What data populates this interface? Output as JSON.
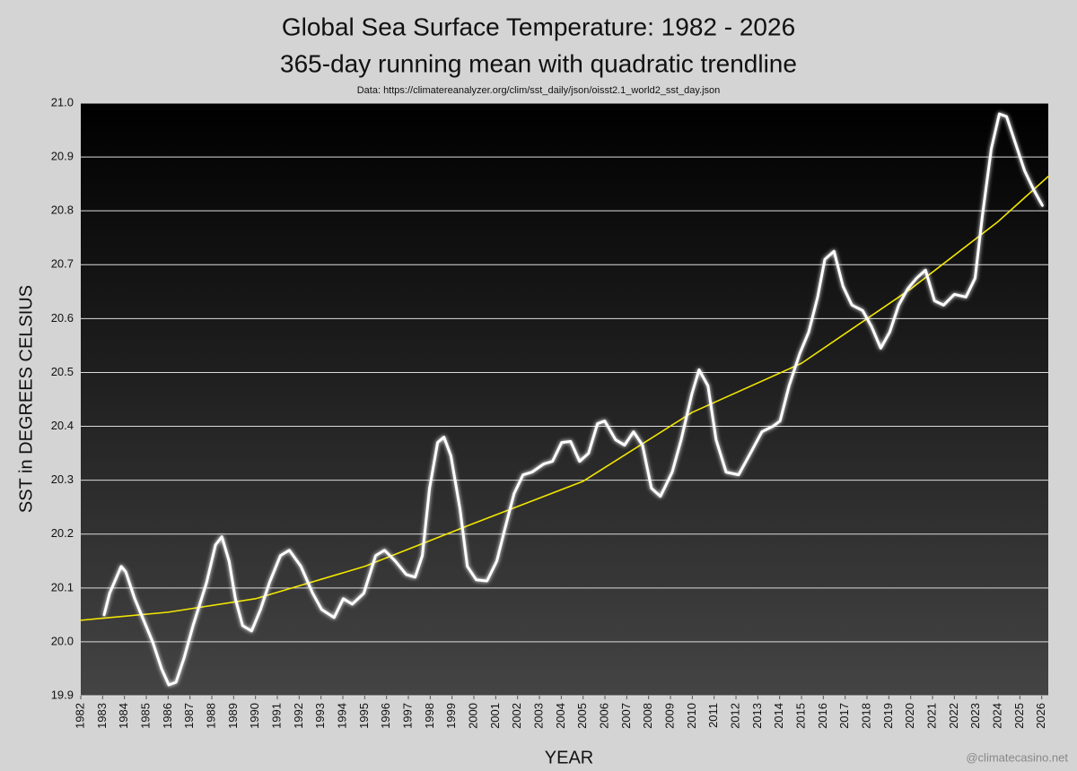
{
  "chart_data": {
    "type": "line",
    "title": "Global Sea Surface Temperature: 1982 - 2026",
    "subtitle": "365-day running mean with quadratic trendline",
    "source": "Data: https://climatereanalyzer.org/clim/sst_daily/json/oisst2.1_world2_sst_day.json",
    "credit": "@climatecasino.net",
    "x_label": "YEAR",
    "y_label": "SST in DEGREES CELSIUS",
    "xlim": [
      1982,
      2026.3
    ],
    "ylim": [
      19.9,
      21.0
    ],
    "yticks": [
      19.9,
      {
        "value": 20,
        "label": "20.0"
      },
      20.1,
      20.2,
      20.3,
      20.4,
      20.5,
      20.6,
      20.7,
      20.8,
      20.9,
      {
        "value": 21,
        "label": "21.0"
      }
    ],
    "xticks": [
      1982,
      1983,
      1984,
      1985,
      1986,
      1987,
      1988,
      1989,
      1990,
      1991,
      1992,
      1993,
      1994,
      1995,
      1996,
      1997,
      1998,
      1999,
      2000,
      2001,
      2002,
      2003,
      2004,
      2005,
      2006,
      2007,
      2008,
      2009,
      2010,
      2011,
      2012,
      2013,
      2014,
      2015,
      2016,
      2017,
      2018,
      2019,
      2020,
      2021,
      2022,
      2023,
      2024,
      2025,
      2026
    ],
    "grid": true,
    "series": [
      {
        "color": "#ffffff",
        "x": [
          1983.07,
          1983.32,
          1983.85,
          1984.06,
          1984.47,
          1984.88,
          1985.29,
          1985.7,
          1986.03,
          1986.36,
          1986.73,
          1987.14,
          1987.76,
          1988.17,
          1988.46,
          1988.79,
          1989.08,
          1989.41,
          1989.82,
          1990.23,
          1990.64,
          1991.14,
          1991.55,
          1992.08,
          1992.62,
          1993.03,
          1993.6,
          1994.02,
          1994.43,
          1994.96,
          1995.5,
          1995.91,
          1996.4,
          1996.9,
          1997.31,
          1997.64,
          1997.97,
          1998.34,
          1998.63,
          1998.95,
          1999.37,
          1999.7,
          2000.11,
          2000.6,
          2001.05,
          2001.42,
          2001.84,
          2002.25,
          2002.66,
          2003.19,
          2003.6,
          2004.02,
          2004.43,
          2004.84,
          2005.25,
          2005.66,
          2005.99,
          2006.49,
          2006.9,
          2007.31,
          2007.72,
          2008.13,
          2008.54,
          2009.08,
          2009.49,
          2009.98,
          2010.31,
          2010.72,
          2011.09,
          2011.55,
          2012.12,
          2012.66,
          2013.19,
          2013.69,
          2014.02,
          2014.43,
          2014.92,
          2015.33,
          2015.74,
          2016.07,
          2016.49,
          2016.9,
          2017.31,
          2017.8,
          2018.21,
          2018.63,
          2019.04,
          2019.45,
          2019.86,
          2020.27,
          2020.68,
          2021.09,
          2021.51,
          2022.0,
          2022.53,
          2022.95,
          2023.28,
          2023.69,
          2024.06,
          2024.39,
          2024.8,
          2025.21,
          2025.62,
          2026.03
        ],
        "values": [
          20.05,
          20.09,
          20.14,
          20.13,
          20.08,
          20.04,
          20.0,
          19.95,
          19.92,
          19.925,
          19.97,
          20.03,
          20.11,
          20.18,
          20.195,
          20.15,
          20.08,
          20.03,
          20.02,
          20.06,
          20.11,
          20.16,
          20.17,
          20.14,
          20.09,
          20.06,
          20.045,
          20.08,
          20.07,
          20.09,
          20.16,
          20.17,
          20.15,
          20.125,
          20.12,
          20.16,
          20.285,
          20.37,
          20.38,
          20.345,
          20.245,
          20.14,
          20.115,
          20.113,
          20.15,
          20.21,
          20.275,
          20.31,
          20.315,
          20.33,
          20.335,
          20.37,
          20.372,
          20.335,
          20.35,
          20.405,
          20.41,
          20.375,
          20.365,
          20.39,
          20.365,
          20.285,
          20.27,
          20.315,
          20.375,
          20.46,
          20.505,
          20.475,
          20.375,
          20.315,
          20.31,
          20.35,
          20.39,
          20.4,
          20.41,
          20.475,
          20.535,
          20.575,
          20.64,
          20.71,
          20.725,
          20.66,
          20.625,
          20.615,
          20.585,
          20.545,
          20.575,
          20.625,
          20.655,
          20.675,
          20.69,
          20.633,
          20.625,
          20.645,
          20.64,
          20.675,
          20.79,
          20.915,
          20.98,
          20.975,
          20.925,
          20.875,
          20.84,
          20.81
        ]
      },
      {
        "color": "#f2e600",
        "x": [
          1982,
          1986,
          1990,
          1995,
          2000,
          2005,
          2010,
          2015,
          2020,
          2024,
          2026.3
        ],
        "values": [
          20.04,
          20.055,
          20.08,
          20.14,
          20.22,
          20.298,
          20.426,
          20.517,
          20.655,
          20.78,
          20.864
        ]
      }
    ]
  }
}
